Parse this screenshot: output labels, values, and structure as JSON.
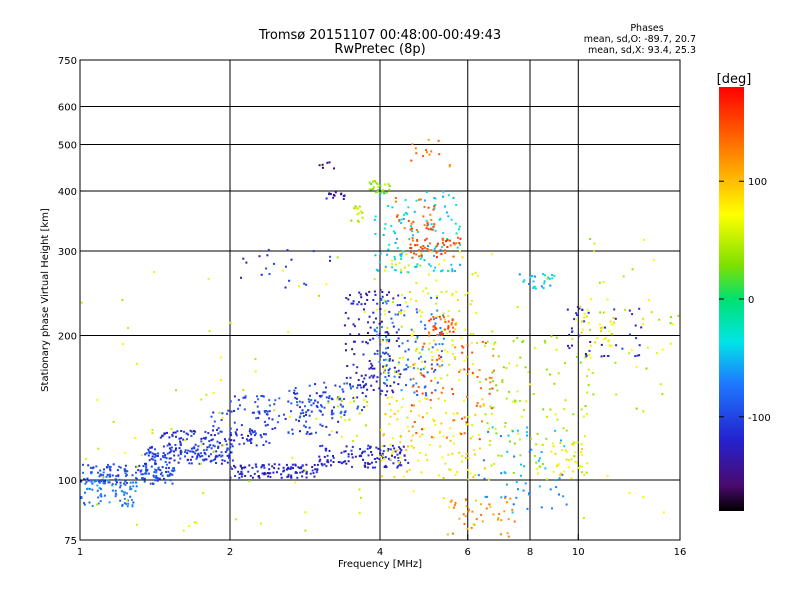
{
  "chart_data": {
    "type": "scatter",
    "title": "Tromsø 20151107 00:48:00-00:49:43",
    "subtitle": "RwPretec (8p)",
    "xlabel": "Frequency [MHz]",
    "ylabel": "Stationary phase Virtual Height [km]",
    "x_scale": "log",
    "y_scale": "log",
    "xlim": [
      1,
      16
    ],
    "ylim": [
      75,
      750
    ],
    "x_ticks": [
      1,
      2,
      4,
      6,
      8,
      10,
      16
    ],
    "x_tick_labels": [
      "1",
      "2",
      "4",
      "6",
      "8",
      "10",
      "16"
    ],
    "y_ticks": [
      75,
      100,
      200,
      300,
      400,
      500,
      600,
      750
    ],
    "y_tick_labels": [
      "75",
      "100",
      "200",
      "300",
      "400",
      "500",
      "600",
      "750"
    ],
    "x_grid": [
      2,
      4,
      6,
      8,
      10
    ],
    "y_grid": [
      100,
      200,
      300,
      400,
      500,
      600
    ],
    "grid": true,
    "stats": {
      "heading": "Phases",
      "line_o": "mean, sd,O: -89.7, 20.7",
      "line_x": "mean, sd,X:  93.4, 25.3"
    },
    "colorbar": {
      "label": "[deg]",
      "range": [
        -180,
        180
      ],
      "ticks": [
        100,
        0,
        -100
      ],
      "tick_labels": [
        "100",
        "0",
        "-100"
      ],
      "colormap": "rainbow"
    },
    "clusters": [
      {
        "x": [
          1.0,
          1.55
        ],
        "y": [
          98,
          108
        ],
        "phase": -95,
        "n": 160
      },
      {
        "x": [
          1.0,
          1.3
        ],
        "y": [
          88,
          100
        ],
        "phase": -75,
        "n": 70
      },
      {
        "x": [
          1.35,
          2.05
        ],
        "y": [
          108,
          118
        ],
        "phase": -105,
        "n": 140
      },
      {
        "x": [
          1.45,
          2.4
        ],
        "y": [
          118,
          127
        ],
        "phase": -112,
        "n": 90
      },
      {
        "x": [
          2.0,
          3.0
        ],
        "y": [
          101,
          108
        ],
        "phase": -120,
        "n": 110
      },
      {
        "x": [
          3.0,
          4.6
        ],
        "y": [
          106,
          118
        ],
        "phase": -118,
        "n": 120
      },
      {
        "x": [
          1.8,
          3.3
        ],
        "y": [
          124,
          140
        ],
        "phase": -108,
        "n": 80
      },
      {
        "x": [
          2.0,
          3.4
        ],
        "y": [
          135,
          150
        ],
        "phase": -95,
        "n": 60
      },
      {
        "x": [
          2.6,
          3.8
        ],
        "y": [
          138,
          160
        ],
        "phase": -100,
        "n": 60
      },
      {
        "x": [
          3.2,
          3.8
        ],
        "y": [
          120,
          150
        ],
        "phase": 60,
        "n": 18
      },
      {
        "x": [
          3.4,
          4.4
        ],
        "y": [
          150,
          250
        ],
        "phase": -128,
        "n": 140
      },
      {
        "x": [
          3.9,
          5.4
        ],
        "y": [
          150,
          240
        ],
        "phase": -80,
        "n": 110
      },
      {
        "x": [
          4.0,
          6.3
        ],
        "y": [
          160,
          300
        ],
        "phase": 70,
        "n": 120
      },
      {
        "x": [
          3.9,
          5.8
        ],
        "y": [
          270,
          400
        ],
        "phase": -40,
        "n": 110
      },
      {
        "x": [
          4.6,
          5.8
        ],
        "y": [
          290,
          320
        ],
        "phase": 150,
        "n": 50
      },
      {
        "x": [
          5.0,
          5.7
        ],
        "y": [
          200,
          220
        ],
        "phase": 150,
        "n": 35
      },
      {
        "x": [
          3.8,
          4.2
        ],
        "y": [
          395,
          420
        ],
        "phase": 35,
        "n": 25
      },
      {
        "x": [
          3.5,
          3.7
        ],
        "y": [
          345,
          375
        ],
        "phase": 45,
        "n": 14
      },
      {
        "x": [
          3.1,
          3.4
        ],
        "y": [
          385,
          400
        ],
        "phase": -140,
        "n": 14
      },
      {
        "x": [
          3.0,
          3.3
        ],
        "y": [
          445,
          460
        ],
        "phase": -150,
        "n": 6
      },
      {
        "x": [
          4.3,
          5.2
        ],
        "y": [
          330,
          390
        ],
        "phase": 140,
        "n": 30
      },
      {
        "x": [
          4.6,
          5.6
        ],
        "y": [
          420,
          520
        ],
        "phase": 130,
        "n": 14
      },
      {
        "x": [
          4.0,
          6.5
        ],
        "y": [
          100,
          150
        ],
        "phase": 80,
        "n": 120
      },
      {
        "x": [
          4.6,
          6.8
        ],
        "y": [
          120,
          200
        ],
        "phase": 140,
        "n": 70
      },
      {
        "x": [
          6.5,
          10.5
        ],
        "y": [
          100,
          200
        ],
        "phase": 45,
        "n": 110
      },
      {
        "x": [
          6.3,
          9.5
        ],
        "y": [
          85,
          130
        ],
        "phase": -60,
        "n": 55
      },
      {
        "x": [
          8.8,
          10.3
        ],
        "y": [
          100,
          120
        ],
        "phase": 75,
        "n": 35
      },
      {
        "x": [
          9.5,
          13.5
        ],
        "y": [
          180,
          230
        ],
        "phase": -120,
        "n": 45
      },
      {
        "x": [
          9.8,
          11.8
        ],
        "y": [
          190,
          240
        ],
        "phase": 80,
        "n": 35
      },
      {
        "x": [
          7.6,
          9.0
        ],
        "y": [
          250,
          270
        ],
        "phase": -50,
        "n": 25
      },
      {
        "x": [
          10.0,
          16.0
        ],
        "y": [
          140,
          330
        ],
        "phase": 50,
        "n": 35
      },
      {
        "x": [
          5.5,
          7.5
        ],
        "y": [
          76,
          92
        ],
        "phase": 120,
        "n": 40
      },
      {
        "x": [
          2.0,
          3.2
        ],
        "y": [
          250,
          310
        ],
        "phase": -110,
        "n": 20
      },
      {
        "x": [
          1.0,
          16.0
        ],
        "y": [
          75,
          300
        ],
        "phase": 60,
        "n": 110
      }
    ]
  }
}
